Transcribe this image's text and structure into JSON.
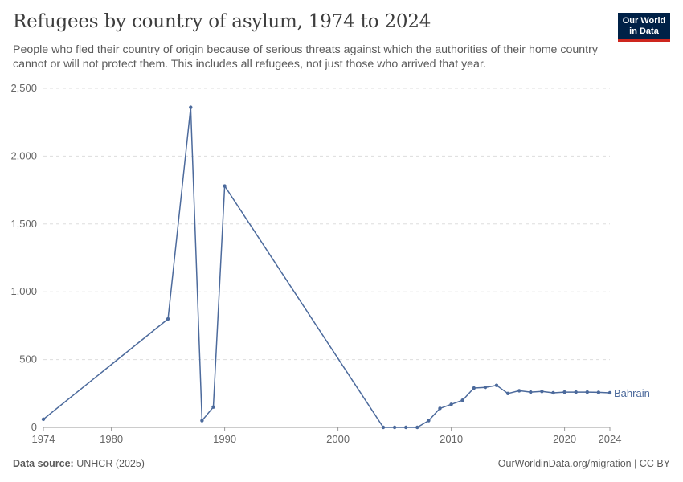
{
  "header": {
    "title": "Refugees by country of asylum, 1974 to 2024",
    "subtitle": "People who fled their country of origin because of serious threats against which the authorities of their home country cannot or will not protect them. This includes all refugees, not just those who arrived that year.",
    "logo_line1": "Our World",
    "logo_line2": "in Data"
  },
  "footer": {
    "source_label": "Data source:",
    "source_value": "UNHCR (2025)",
    "credit": "OurWorldinData.org/migration | CC BY"
  },
  "colors": {
    "series": "#4c6a9c",
    "grid": "#dddddd",
    "axis": "#999999",
    "logo_bg": "#002147",
    "logo_accent": "#ce261e"
  },
  "chart_data": {
    "type": "line",
    "title": "Refugees by country of asylum, 1974 to 2024",
    "xlabel": "",
    "ylabel": "",
    "xlim": [
      1974,
      2024
    ],
    "ylim": [
      0,
      2500
    ],
    "grid": "horizontal dashed",
    "legend": "inline label at line end",
    "x_ticks": [
      1974,
      1980,
      1990,
      2000,
      2010,
      2020,
      2024
    ],
    "y_ticks": [
      0,
      500,
      1000,
      1500,
      2000,
      2500
    ],
    "y_tick_labels": [
      "0",
      "500",
      "1,000",
      "1,500",
      "2,000",
      "2,500"
    ],
    "series": [
      {
        "name": "Bahrain",
        "color": "#4c6a9c",
        "x": [
          1974,
          1985,
          1987,
          1988,
          1989,
          1990,
          2004,
          2005,
          2006,
          2007,
          2008,
          2009,
          2010,
          2011,
          2012,
          2013,
          2014,
          2015,
          2016,
          2017,
          2018,
          2019,
          2020,
          2021,
          2022,
          2023,
          2024
        ],
        "y": [
          60,
          800,
          2360,
          50,
          150,
          1780,
          0,
          0,
          0,
          0,
          50,
          140,
          170,
          200,
          290,
          295,
          310,
          250,
          270,
          260,
          265,
          255,
          260,
          260,
          260,
          258,
          255
        ]
      }
    ]
  }
}
